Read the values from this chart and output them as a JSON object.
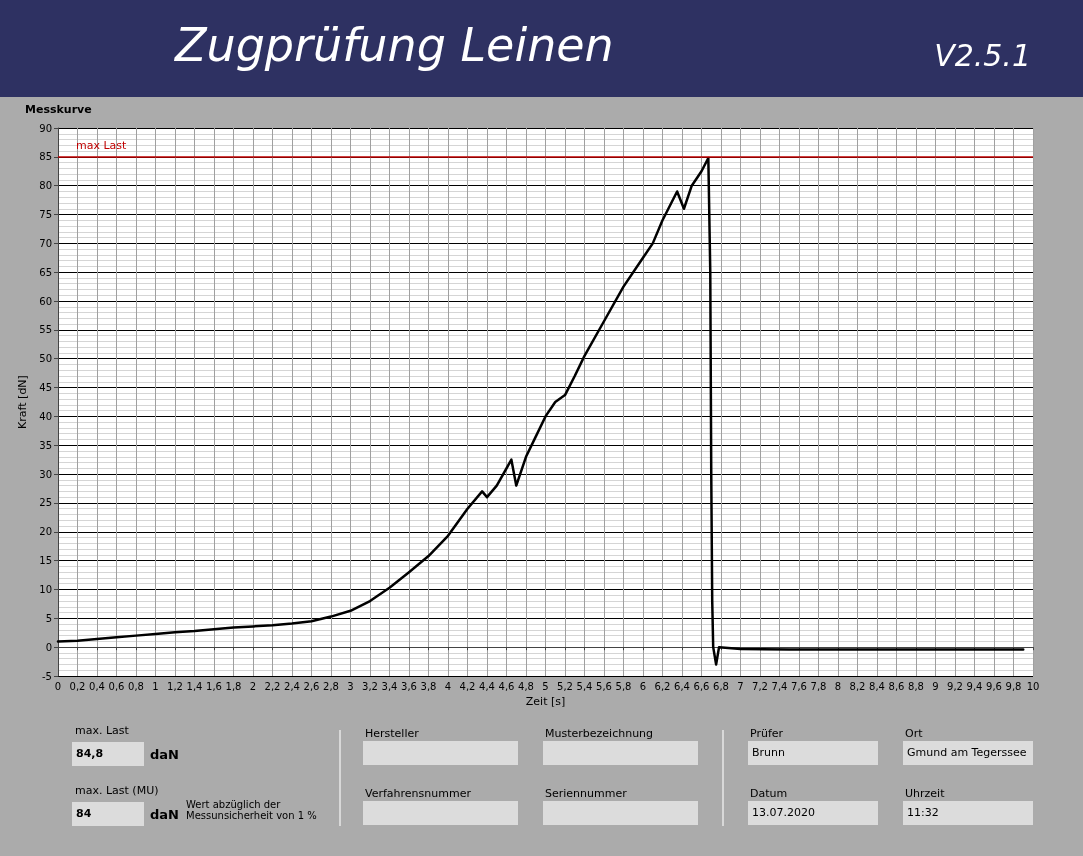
{
  "chart_data": {
    "type": "line",
    "title": "Zugprüfung Leinen",
    "subtitle": "V2.5.1",
    "xlabel": "Zeit [s]",
    "ylabel": "Kraft [dN]",
    "annotations": [
      "Messkurve",
      "max. Last",
      "84,8",
      "daN",
      "max. Last (MU)",
      "84",
      "daN",
      "Wert abzüglich der Messunsicherheit von 1 %",
      "Hersteller",
      "Musterbezeichnung",
      "Verfahrensnummer",
      "Seriennummer",
      "Prüfer",
      "Brunn",
      "Ort",
      "Gmund am Tegerssee",
      "Datum",
      "13.07.2020",
      "Uhrzeit",
      "11:32"
    ],
    "x": [
      0,
      0.2,
      0.4,
      0.6,
      0.8,
      1,
      1.2,
      1.4,
      1.6,
      1.8,
      2,
      2.2,
      2.4,
      2.6,
      2.8,
      3,
      3.2,
      3.4,
      3.6,
      3.8,
      4,
      4.2,
      4.35,
      4.4,
      4.5,
      4.65,
      4.7,
      4.8,
      4.9,
      5,
      5.1,
      5.2,
      5.3,
      5.4,
      5.6,
      5.8,
      6,
      6.1,
      6.2,
      6.35,
      6.42,
      6.5,
      6.6,
      6.67,
      6.69,
      6.7,
      6.71,
      6.72,
      6.75,
      6.78,
      7,
      7.5,
      8,
      8.5,
      9,
      9.5,
      9.9
    ],
    "series": [
      {
        "color": "#000000",
        "values": [
          1,
          1.1,
          1.4,
          1.7,
          2,
          2.3,
          2.6,
          2.8,
          3.1,
          3.4,
          3.6,
          3.8,
          4.1,
          4.5,
          5.3,
          6.3,
          8,
          10.3,
          13,
          15.8,
          19.3,
          24,
          27,
          26,
          28,
          32.5,
          28,
          33,
          36.5,
          40,
          42.5,
          43.7,
          47,
          50.5,
          56.5,
          62.5,
          67.5,
          70,
          74,
          79,
          76,
          80,
          82.5,
          84.8,
          65,
          30,
          8,
          0,
          -3,
          0,
          -0.3,
          -0.4,
          -0.4,
          -0.4,
          -0.4,
          -0.4,
          -0.4
        ]
      }
    ],
    "xlim": [
      0,
      10
    ],
    "ylim": [
      -5,
      90
    ],
    "xticks": [
      0,
      {
        "value": 0.2,
        "label": "0,2"
      },
      {
        "value": 0.4,
        "label": "0,4"
      },
      {
        "value": 0.6,
        "label": "0,6"
      },
      {
        "value": 0.8,
        "label": "0,8"
      },
      1,
      {
        "value": 1.2,
        "label": "1,2"
      },
      {
        "value": 1.4,
        "label": "1,4"
      },
      {
        "value": 1.6,
        "label": "1,6"
      },
      {
        "value": 1.8,
        "label": "1,8"
      },
      2,
      {
        "value": 2.2,
        "label": "2,2"
      },
      {
        "value": 2.4,
        "label": "2,4"
      },
      {
        "value": 2.6,
        "label": "2,6"
      },
      {
        "value": 2.8,
        "label": "2,8"
      },
      3,
      {
        "value": 3.2,
        "label": "3,2"
      },
      {
        "value": 3.4,
        "label": "3,4"
      },
      {
        "value": 3.6,
        "label": "3,6"
      },
      {
        "value": 3.8,
        "label": "3,8"
      },
      4,
      {
        "value": 4.2,
        "label": "4,2"
      },
      {
        "value": 4.4,
        "label": "4,4"
      },
      {
        "value": 4.6,
        "label": "4,6"
      },
      {
        "value": 4.8,
        "label": "4,8"
      },
      5,
      {
        "value": 5.2,
        "label": "5,2"
      },
      {
        "value": 5.4,
        "label": "5,4"
      },
      {
        "value": 5.6,
        "label": "5,6"
      },
      {
        "value": 5.8,
        "label": "5,8"
      },
      6,
      {
        "value": 6.2,
        "label": "6,2"
      },
      {
        "value": 6.4,
        "label": "6,4"
      },
      {
        "value": 6.6,
        "label": "6,6"
      },
      {
        "value": 6.8,
        "label": "6,8"
      },
      7,
      {
        "value": 7.2,
        "label": "7,2"
      },
      {
        "value": 7.4,
        "label": "7,4"
      },
      {
        "value": 7.6,
        "label": "7,6"
      },
      {
        "value": 7.8,
        "label": "7,8"
      },
      8,
      {
        "value": 8.2,
        "label": "8,2"
      },
      {
        "value": 8.4,
        "label": "8,4"
      },
      {
        "value": 8.6,
        "label": "8,6"
      },
      {
        "value": 8.8,
        "label": "8,8"
      },
      9,
      {
        "value": 9.2,
        "label": "9,2"
      },
      {
        "value": 9.4,
        "label": "9,4"
      },
      {
        "value": 9.6,
        "label": "9,6"
      },
      {
        "value": 9.8,
        "label": "9,8"
      },
      10
    ],
    "yticks": [
      -5,
      0,
      5,
      10,
      15,
      20,
      25,
      30,
      35,
      40,
      45,
      50,
      55,
      60,
      65,
      70,
      75,
      80,
      85,
      90
    ],
    "ref_lines": [
      {
        "axis": "y",
        "value": 85,
        "label": "max Last",
        "color": "#c00000"
      }
    ],
    "grid": true,
    "marker": "none",
    "line_style": "solid"
  }
}
